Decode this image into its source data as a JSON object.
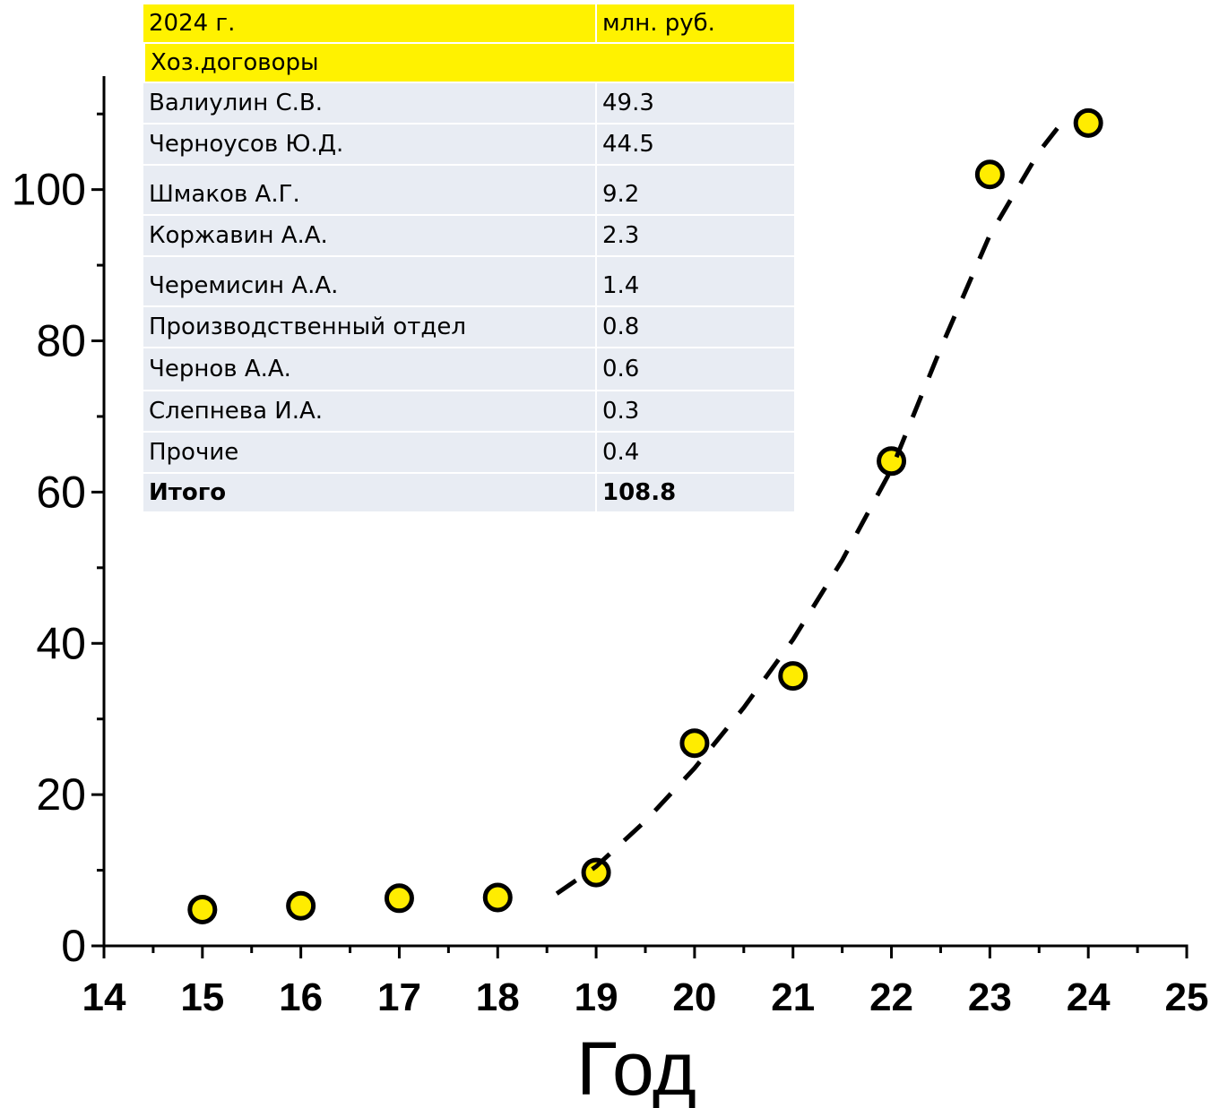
{
  "chart_data": {
    "type": "scatter",
    "x_label": "Год",
    "xlim": [
      14,
      25
    ],
    "xticks": [
      14,
      15,
      16,
      17,
      18,
      19,
      20,
      21,
      22,
      23,
      24,
      25
    ],
    "ylim": [
      0,
      115
    ],
    "yticks": [
      0,
      20,
      40,
      60,
      80,
      100
    ],
    "series": [
      {
        "color": "#ffec00",
        "x": [
          15,
          16,
          17,
          18,
          19,
          20,
          21,
          22,
          23,
          24
        ],
        "values": [
          4.8,
          5.3,
          6.3,
          6.4,
          9.7,
          26.8,
          35.7,
          64.1,
          102.0,
          108.8
        ]
      },
      {
        "type": "line",
        "dashed": true,
        "color": "#000000",
        "x": [
          18.6,
          19,
          19.5,
          20,
          20.5,
          21,
          21.5,
          22,
          22.5,
          23,
          23.5,
          23.8
        ],
        "values": [
          6.9,
          10.5,
          16.5,
          23.5,
          31.5,
          40.5,
          51,
          63,
          79,
          94,
          105,
          110
        ]
      }
    ]
  },
  "table": {
    "header": [
      "2024 г.",
      "млн. руб."
    ],
    "section": "Хоз.договоры",
    "rows": [
      [
        "Валиулин С.В.",
        49.3
      ],
      [
        "Черноусов Ю.Д.",
        44.5
      ],
      [
        "Шмаков А.Г.",
        9.2
      ],
      [
        "Коржавин А.А.",
        2.3
      ],
      [
        "Черемисин А.А.",
        1.4
      ],
      [
        "Производственный отдел",
        0.8
      ],
      [
        "Чернов А.А.",
        0.6
      ],
      [
        "Слепнева И.А.",
        0.3
      ],
      [
        "Прочие",
        0.4
      ]
    ],
    "total": [
      "Итого",
      108.8
    ]
  }
}
